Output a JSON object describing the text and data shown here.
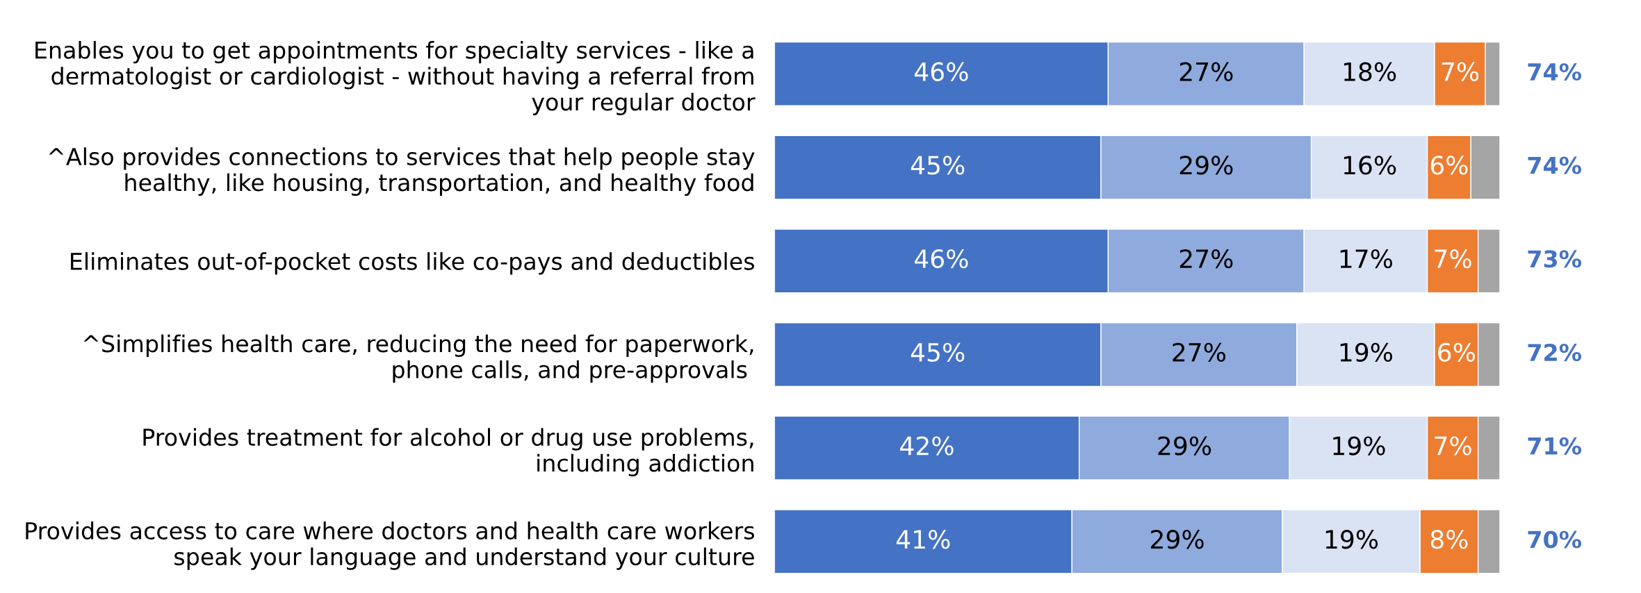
{
  "chart_data": {
    "type": "bar",
    "orientation": "horizontal",
    "stacked": true,
    "categories": [
      "Enables you to get appointments for specialty services - like a\ndermatologist or cardiologist - without having a referral from\nyour regular doctor",
      "^Also provides connections to services that help people stay\nhealthy, like housing, transportation, and healthy food",
      "Eliminates out-of-pocket costs like co-pays and deductibles",
      "^Simplifies health care, reducing the need for paperwork,\nphone calls, and pre-approvals ",
      "Provides treatment for alcohol or drug use problems,\nincluding addiction",
      "Provides access to care where doctors and health care workers\nspeak your language and understand your culture"
    ],
    "series": [
      {
        "color": "#4472c4",
        "values": [
          46,
          45,
          46,
          45,
          42,
          41
        ],
        "value_labels": [
          "46%",
          "45%",
          "46%",
          "45%",
          "42%",
          "41%"
        ]
      },
      {
        "color": "#8faadc",
        "values": [
          27,
          29,
          27,
          27,
          29,
          29
        ],
        "value_labels": [
          "27%",
          "29%",
          "27%",
          "27%",
          "29%",
          "29%"
        ]
      },
      {
        "color": "#dae3f3",
        "values": [
          18,
          16,
          17,
          19,
          19,
          19
        ],
        "value_labels": [
          "18%",
          "16%",
          "17%",
          "19%",
          "19%",
          "19%"
        ]
      },
      {
        "color": "#ed7d31",
        "values": [
          7,
          6,
          7,
          6,
          7,
          8
        ],
        "value_labels": [
          "7%",
          "6%",
          "7%",
          "6%",
          "7%",
          "8%"
        ]
      },
      {
        "color": "#a5a5a5",
        "values": [
          2,
          4,
          3,
          3,
          3,
          3
        ]
      }
    ],
    "xlim": [
      0,
      100
    ],
    "tick_labels": "y",
    "grid": false,
    "annotations": [
      "74%",
      "74%",
      "73%",
      "72%",
      "71%",
      "70%"
    ]
  }
}
